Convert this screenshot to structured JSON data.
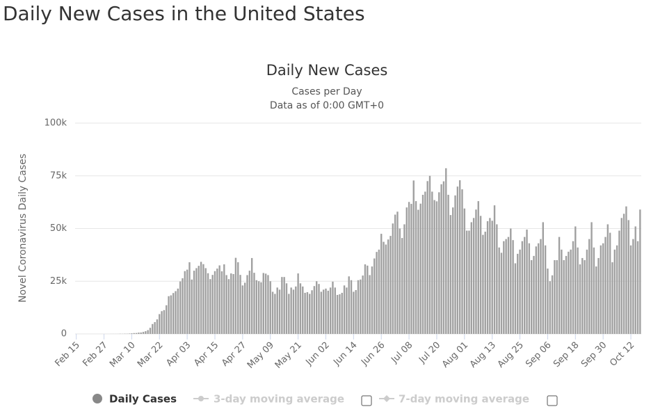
{
  "page_title": "Daily New Cases in the United States",
  "chart_data": {
    "type": "bar",
    "title": "Daily New Cases",
    "subtitle": [
      "Cases per Day",
      "Data as of 0:00 GMT+0"
    ],
    "y_label": "Novel Coronavirus Daily Cases",
    "categories": [
      "Feb 15",
      null,
      null,
      null,
      null,
      null,
      null,
      null,
      null,
      null,
      null,
      null,
      "Feb 27",
      null,
      null,
      null,
      null,
      null,
      null,
      null,
      null,
      null,
      null,
      null,
      "Mar 10",
      null,
      null,
      null,
      null,
      null,
      null,
      null,
      null,
      null,
      null,
      null,
      "Mar 22",
      null,
      null,
      null,
      null,
      null,
      null,
      null,
      null,
      null,
      null,
      null,
      "Apr 03",
      null,
      null,
      null,
      null,
      null,
      null,
      null,
      null,
      null,
      null,
      null,
      "Apr 15",
      null,
      null,
      null,
      null,
      null,
      null,
      null,
      null,
      null,
      null,
      null,
      "Apr 27",
      null,
      null,
      null,
      null,
      null,
      null,
      null,
      null,
      null,
      null,
      null,
      "May 09",
      null,
      null,
      null,
      null,
      null,
      null,
      null,
      null,
      null,
      null,
      null,
      "May 21",
      null,
      null,
      null,
      null,
      null,
      null,
      null,
      null,
      null,
      null,
      null,
      "Jun 02",
      null,
      null,
      null,
      null,
      null,
      null,
      null,
      null,
      null,
      null,
      null,
      "Jun 14",
      null,
      null,
      null,
      null,
      null,
      null,
      null,
      null,
      null,
      null,
      null,
      "Jun 26",
      null,
      null,
      null,
      null,
      null,
      null,
      null,
      null,
      null,
      null,
      null,
      "Jul 08",
      null,
      null,
      null,
      null,
      null,
      null,
      null,
      null,
      null,
      null,
      null,
      "Jul 20",
      null,
      null,
      null,
      null,
      null,
      null,
      null,
      null,
      null,
      null,
      null,
      "Aug 01",
      null,
      null,
      null,
      null,
      null,
      null,
      null,
      null,
      null,
      null,
      null,
      "Aug 13",
      null,
      null,
      null,
      null,
      null,
      null,
      null,
      null,
      null,
      null,
      null,
      "Aug 25",
      null,
      null,
      null,
      null,
      null,
      null,
      null,
      null,
      null,
      null,
      null,
      "Sep 06",
      null,
      null,
      null,
      null,
      null,
      null,
      null,
      null,
      null,
      null,
      null,
      "Sep 18",
      null,
      null,
      null,
      null,
      null,
      null,
      null,
      null,
      null,
      null,
      null,
      "Sep 30",
      null,
      null,
      null,
      null,
      null,
      null,
      null,
      null,
      null,
      null,
      null,
      "Oct 12",
      null,
      null,
      null,
      null
    ],
    "series": [
      {
        "name": "Daily Cases",
        "color": "#a0a0a0",
        "values": [
          0,
          0,
          0,
          0,
          0,
          0,
          0,
          0,
          0,
          0,
          0,
          0,
          0,
          0,
          0,
          20,
          20,
          24,
          33,
          74,
          57,
          106,
          98,
          178,
          272,
          395,
          430,
          610,
          680,
          960,
          1300,
          1800,
          2900,
          4700,
          5600,
          6900,
          9400,
          10800,
          11300,
          13600,
          17900,
          18300,
          19400,
          20300,
          21500,
          24900,
          26400,
          29800,
          30500,
          34000,
          25800,
          30000,
          31200,
          32300,
          34200,
          33100,
          31200,
          28800,
          26000,
          28000,
          29800,
          31000,
          32500,
          29700,
          33000,
          27900,
          26000,
          28700,
          28400,
          36100,
          34000,
          28000,
          23000,
          24300,
          27900,
          30000,
          36000,
          29000,
          25500,
          25000,
          24500,
          28900,
          28600,
          27900,
          25000,
          20000,
          19000,
          22000,
          21000,
          27000,
          27000,
          24000,
          19000,
          22000,
          21000,
          22500,
          28700,
          24000,
          22500,
          19500,
          19800,
          19000,
          20700,
          22700,
          25000,
          23700,
          20000,
          21000,
          21500,
          20500,
          22000,
          24800,
          22000,
          18500,
          18800,
          19500,
          23000,
          22000,
          27300,
          25500,
          20000,
          20800,
          25500,
          25800,
          27700,
          33000,
          32400,
          27900,
          32000,
          35800,
          38900,
          40000,
          47500,
          43700,
          42400,
          44800,
          46500,
          52400,
          56600,
          58000,
          50000,
          45500,
          52000,
          60000,
          62600,
          61700,
          72800,
          63000,
          58900,
          61800,
          66000,
          67500,
          72500,
          75000,
          67500,
          63500,
          62900,
          67200,
          71000,
          72400,
          78600,
          66000,
          56400,
          60000,
          65700,
          69900,
          72900,
          68600,
          59500,
          49000,
          49000,
          53000,
          55000,
          59000,
          63000,
          56000,
          47000,
          48500,
          53500,
          55000,
          53700,
          61000,
          52000,
          41000,
          38500,
          44000,
          45000,
          46000,
          50000,
          44500,
          33500,
          38000,
          40000,
          44000,
          46000,
          49500,
          43000,
          35000,
          37000,
          41500,
          43000,
          45000,
          53000,
          42000,
          31000,
          25000,
          27800,
          35000,
          35000,
          46000,
          40000,
          35000,
          37000,
          39000,
          40000,
          44000,
          51000,
          41000,
          33000,
          36000,
          35000,
          40000,
          45000,
          53000,
          41000,
          32000,
          36000,
          42000,
          43000,
          46000,
          52000,
          48000,
          34000,
          40000,
          42000,
          49000,
          55000,
          57000,
          60500,
          54000,
          42000,
          45000,
          51000,
          44000,
          59000
        ]
      }
    ],
    "legend_toggles": [
      "3-day moving average",
      "7-day moving average"
    ],
    "ylim": [
      0,
      100000
    ],
    "yticks": [
      0,
      {
        "value": 25000,
        "label": "25k"
      },
      {
        "value": 50000,
        "label": "50k"
      },
      {
        "value": 75000,
        "label": "75k"
      },
      {
        "value": 100000,
        "label": "100k"
      }
    ],
    "grid": true
  }
}
